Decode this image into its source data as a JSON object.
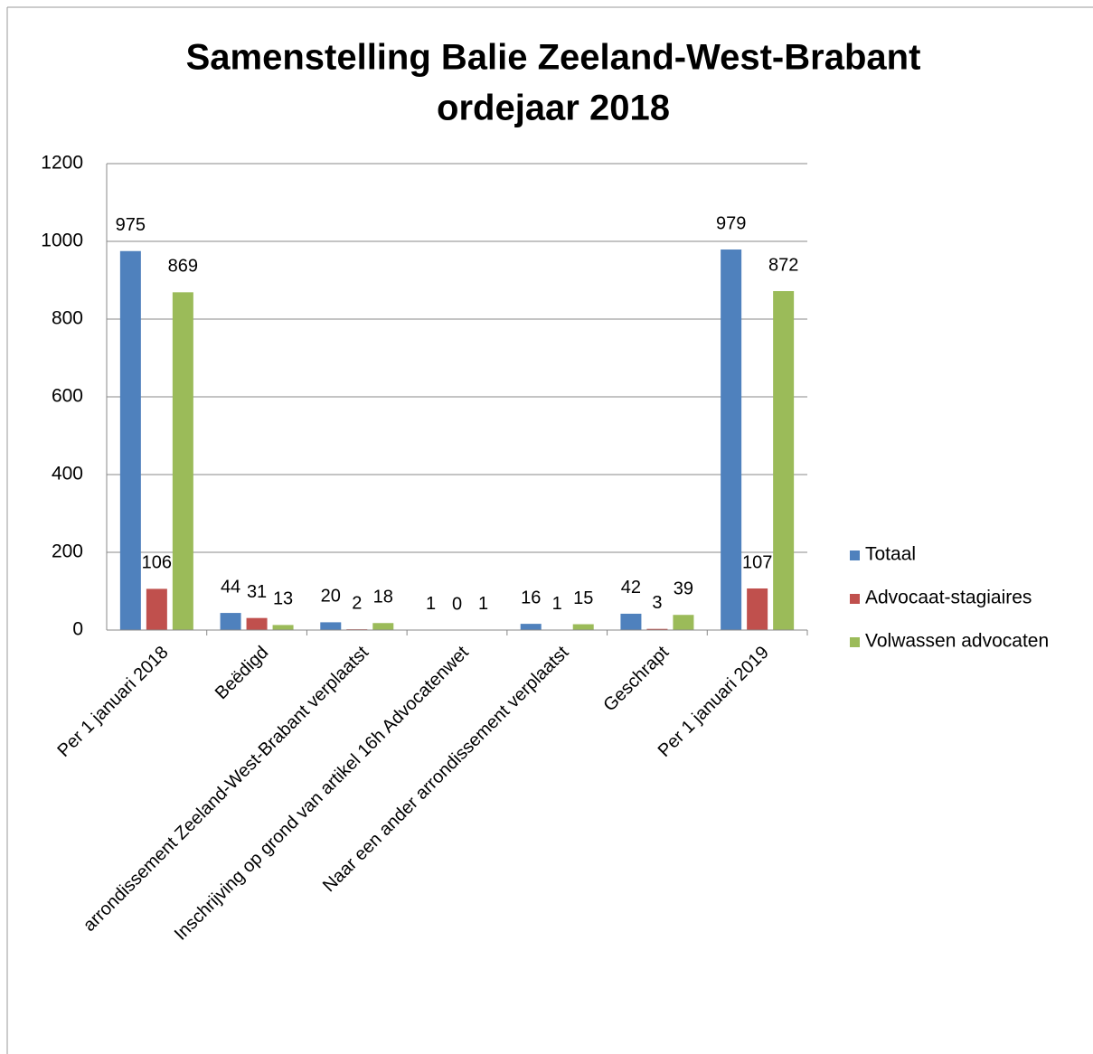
{
  "chart_data": {
    "type": "bar",
    "title": [
      "Samenstelling Balie Zeeland-West-Brabant",
      "ordejaar 2018"
    ],
    "categories": [
      "Per 1 januari 2018",
      "Beëdigd",
      "arrondissement Zeeland-West-Brabant verplaatst",
      "Inschrijving op grond van artikel 16h Advocatenwet",
      "Naar een ander arrondissement verplaatst",
      "Geschrapt",
      "Per 1 januari 2019"
    ],
    "series": [
      {
        "name": "Totaal",
        "color": "#4f81bd",
        "values": [
          975,
          44,
          20,
          1,
          16,
          42,
          979
        ]
      },
      {
        "name": "Advocaat-stagiaires",
        "color": "#c0504d",
        "values": [
          106,
          31,
          2,
          0,
          1,
          3,
          107
        ]
      },
      {
        "name": "Volwassen advocaten",
        "color": "#9bbb59",
        "values": [
          869,
          13,
          18,
          1,
          15,
          39,
          872
        ]
      }
    ],
    "ylim": [
      0,
      1200
    ],
    "yticks": [
      0,
      200,
      400,
      600,
      800,
      1000,
      1200
    ],
    "grid": true,
    "legend": "right"
  }
}
